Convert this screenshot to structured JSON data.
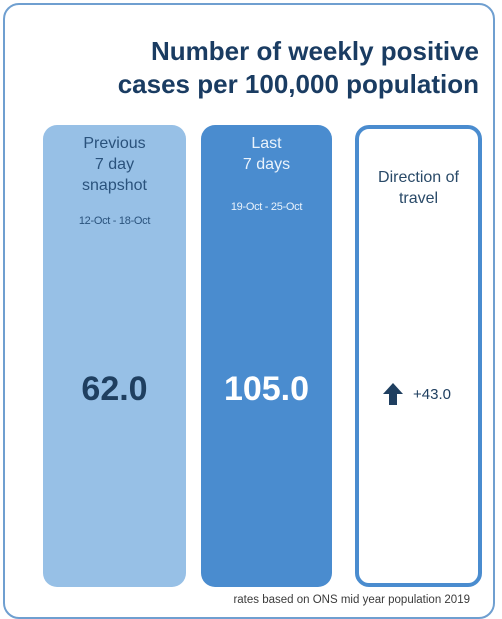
{
  "title_lines": [
    "Number of weekly positive",
    "cases per 100,000 population"
  ],
  "previous": {
    "heading_lines": [
      "Previous",
      "7 day",
      "snapshot"
    ],
    "dates": "12-Oct - 18-Oct",
    "value": "62.0"
  },
  "last": {
    "heading_lines": [
      "Last",
      "7 days"
    ],
    "dates": "19-Oct - 25-Oct",
    "value": "105.0"
  },
  "direction": {
    "heading_lines": [
      "Direction of",
      "travel"
    ],
    "icon": "arrow-up-icon",
    "change": "+43.0"
  },
  "footnote": "rates based on ONS mid year population 2019",
  "colors": {
    "title": "#1a3c62",
    "previous_fill": "#97c0e6",
    "last_fill": "#4a8ccf",
    "border": "#6f9fd0",
    "arrow": "#1f3f60"
  }
}
